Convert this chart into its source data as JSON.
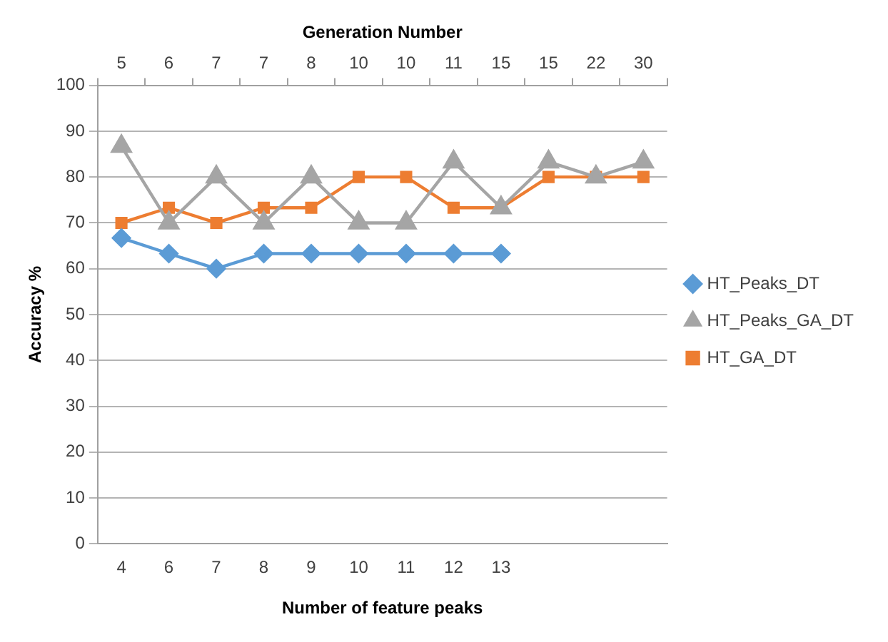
{
  "chart_data": {
    "type": "line",
    "xlabel": "Number of feature peaks",
    "ylabel": "Accuracy %",
    "x2label": "Generation Number",
    "categories": [
      "4",
      "6",
      "7",
      "8",
      "9",
      "10",
      "11",
      "12",
      "13",
      null,
      null,
      null
    ],
    "annotations": [
      "5",
      "6",
      "7",
      "7",
      "8",
      "10",
      "10",
      "11",
      "15",
      "15",
      "22",
      "30"
    ],
    "series": [
      {
        "name": "HT_Peaks_DT",
        "color": "#5b9bd5",
        "marker": "diamond",
        "values": [
          66.7,
          63.3,
          60,
          63.3,
          63.3,
          63.3,
          63.3,
          63.3,
          63.3,
          null,
          null,
          null
        ]
      },
      {
        "name": "HT_Peaks_GA_DT",
        "color": "#a5a5a5",
        "marker": "triangle",
        "values": [
          86.7,
          70,
          80,
          70,
          80,
          70,
          70,
          83.3,
          73.3,
          83.3,
          80,
          83.3
        ]
      },
      {
        "name": "HT_GA_DT",
        "color": "#ed7d31",
        "marker": "square",
        "values": [
          70,
          73.3,
          70,
          73.3,
          73.3,
          80,
          80,
          73.3,
          73.3,
          80,
          80,
          80
        ]
      }
    ],
    "ylim": [
      0,
      100
    ],
    "yticks": [
      0,
      10,
      20,
      30,
      40,
      50,
      60,
      70,
      80,
      90,
      100
    ],
    "grid": "y",
    "legend": "right"
  }
}
